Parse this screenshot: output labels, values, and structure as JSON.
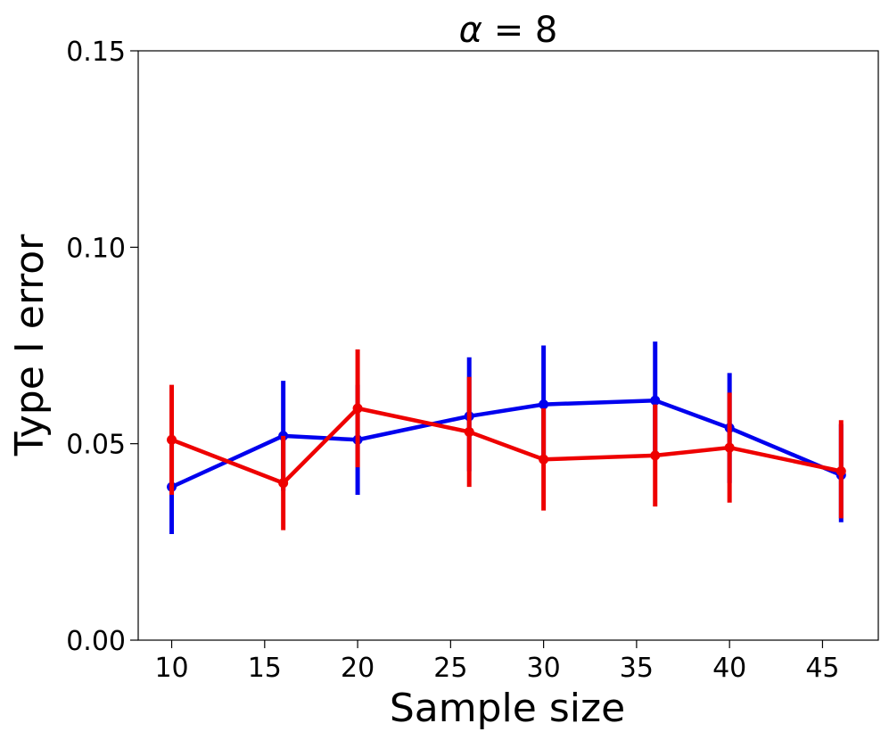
{
  "chart_data": {
    "type": "line",
    "title_symbol": "α",
    "title_value": " = 8",
    "xlabel": "Sample size",
    "ylabel": "Type I error",
    "xlim": [
      8.2,
      48.0
    ],
    "ylim": [
      0.0,
      0.15
    ],
    "xticks": [
      10,
      15,
      20,
      25,
      30,
      35,
      40,
      45
    ],
    "yticks": [
      0.0,
      0.05,
      0.1,
      0.15
    ],
    "ytick_labels": [
      "0.00",
      "0.05",
      "0.10",
      "0.15"
    ],
    "grid": false,
    "legend": "none",
    "series": [
      {
        "name": "blue",
        "color": "#0000ee",
        "x": [
          10,
          16,
          20,
          26,
          30,
          36,
          40,
          46
        ],
        "y": [
          0.039,
          0.052,
          0.051,
          0.057,
          0.06,
          0.061,
          0.054,
          0.042
        ],
        "lower": [
          0.027,
          0.038,
          0.037,
          0.043,
          0.045,
          0.046,
          0.04,
          0.03
        ],
        "upper": [
          0.051,
          0.066,
          0.065,
          0.072,
          0.075,
          0.076,
          0.068,
          0.055
        ]
      },
      {
        "name": "red",
        "color": "#ee0000",
        "x": [
          10,
          16,
          20,
          26,
          30,
          36,
          40,
          46
        ],
        "y": [
          0.051,
          0.04,
          0.059,
          0.053,
          0.046,
          0.047,
          0.049,
          0.043
        ],
        "lower": [
          0.037,
          0.028,
          0.044,
          0.039,
          0.033,
          0.034,
          0.035,
          0.031
        ],
        "upper": [
          0.065,
          0.052,
          0.074,
          0.067,
          0.059,
          0.06,
          0.063,
          0.056
        ]
      }
    ]
  }
}
